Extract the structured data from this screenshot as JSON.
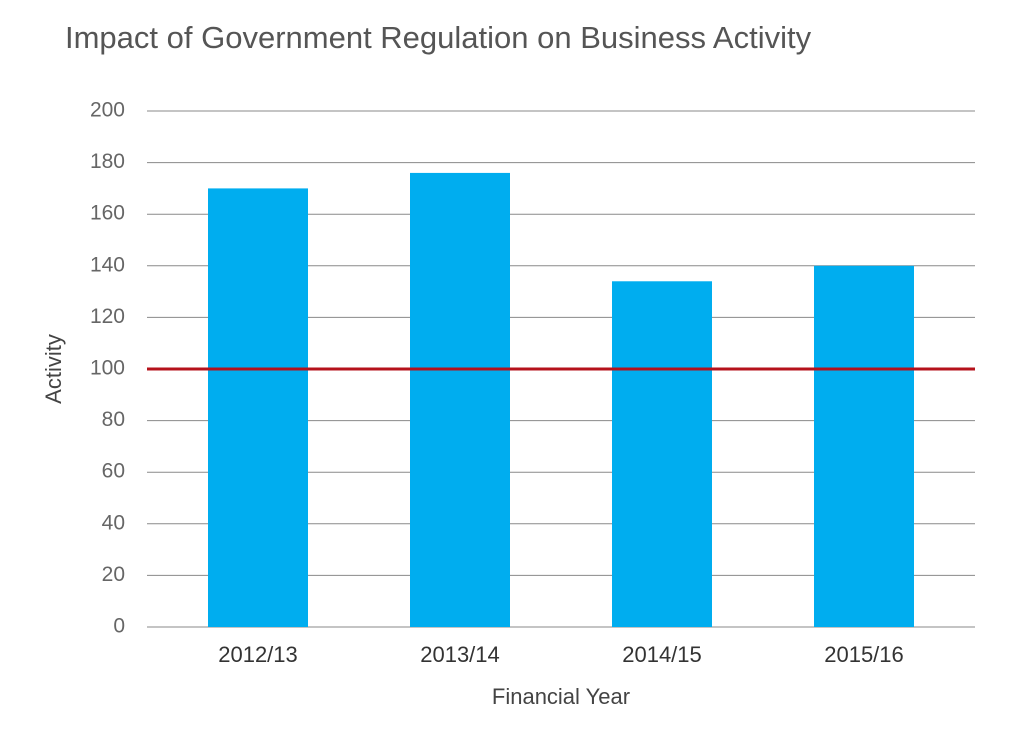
{
  "chart_data": {
    "type": "bar",
    "title": "Impact of Government Regulation on Business Activity",
    "x_label": "Financial Year",
    "y_label": "Activity",
    "categories": [
      "2012/13",
      "2013/14",
      "2014/15",
      "2015/16"
    ],
    "values": [
      170,
      176,
      134,
      140
    ],
    "color": "#00adef",
    "ylim": [
      0,
      200
    ],
    "yticks": [
      0,
      20,
      40,
      60,
      80,
      100,
      120,
      140,
      160,
      180,
      200
    ],
    "grid": true,
    "reference_line": {
      "value": 100,
      "color": "#b5121b"
    }
  }
}
